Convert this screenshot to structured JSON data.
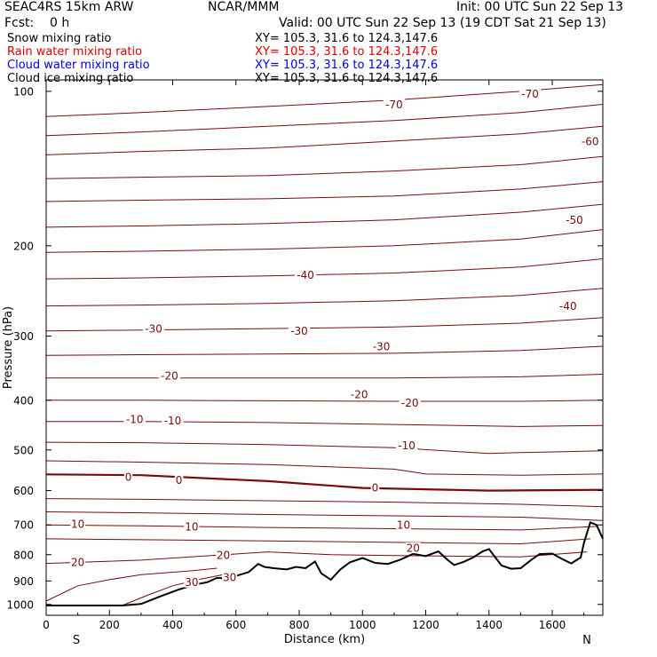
{
  "header": {
    "line1_left": "SEAC4RS 15km ARW",
    "line1_mid": "NCAR/MMM",
    "line1_right": "Init: 00 UTC Sun 22 Sep 13",
    "line2_left": "Fcst:    0 h",
    "line2_right": "Valid: 00 UTC Sun 22 Sep 13 (19 CDT Sat 21 Sep 13)"
  },
  "legend": [
    {
      "label": "Snow mixing ratio",
      "xy": "XY= 105.3, 31.6 to 124.3,147.6",
      "color": "#000000"
    },
    {
      "label": "Rain water mixing ratio",
      "xy": "XY= 105.3, 31.6 to 124.3,147.6",
      "color": "#e00000"
    },
    {
      "label": "Cloud water mixing ratio",
      "xy": "XY= 105.3, 31.6 to 124.3,147.6",
      "color": "#0000e0"
    },
    {
      "label": "Cloud ice mixing ratio",
      "xy": "XY= 105.3, 31.6 to 124.3,147.6",
      "color": "#000000"
    }
  ],
  "colors": {
    "contour": "#7a0a0a",
    "terrain": "#000000"
  },
  "chart_data": {
    "type": "line",
    "subtype": "vertical cross-section contour plot",
    "xlabel": "Distance (km)",
    "ylabel": "Pressure (hPa)",
    "xlim": [
      0,
      1760
    ],
    "ylim": [
      1050,
      95
    ],
    "yscale": "log",
    "x_ticks": [
      0,
      200,
      400,
      600,
      800,
      1000,
      1200,
      1400,
      1600
    ],
    "y_ticks": [
      1000,
      900,
      800,
      700,
      600,
      500,
      400,
      300,
      200,
      100
    ],
    "x_end_labels": {
      "left": "S",
      "right": "N"
    },
    "contour_field": "temperature (C)",
    "contour_interval": 5,
    "contours": [
      {
        "x": [
          0,
          300,
          700,
          1100,
          1500,
          1760
        ],
        "p": [
          112,
          110,
          107,
          104,
          100,
          97
        ]
      },
      {
        "x": [
          0,
          300,
          700,
          1100,
          1500,
          1760
        ],
        "p": [
          122,
          120,
          117,
          114,
          110,
          106
        ]
      },
      {
        "x": [
          0,
          300,
          700,
          1100,
          1500,
          1760
        ],
        "p": [
          133,
          131,
          129,
          125,
          121,
          117
        ]
      },
      {
        "x": [
          0,
          300,
          700,
          1100,
          1500,
          1760
        ],
        "p": [
          148,
          147,
          146,
          143,
          139,
          134
        ]
      },
      {
        "x": [
          0,
          300,
          700,
          1100,
          1500,
          1760
        ],
        "p": [
          164,
          163,
          162,
          160,
          155,
          150
        ]
      },
      {
        "x": [
          0,
          300,
          700,
          1100,
          1500,
          1760
        ],
        "p": [
          184,
          183,
          181,
          178,
          172,
          166
        ]
      },
      {
        "x": [
          0,
          300,
          700,
          1100,
          1500,
          1760
        ],
        "p": [
          206,
          205,
          203,
          200,
          194,
          186
        ]
      },
      {
        "x": [
          0,
          300,
          700,
          1100,
          1500,
          1760
        ],
        "p": [
          232,
          231,
          229,
          226,
          220,
          212
        ]
      },
      {
        "x": [
          0,
          300,
          700,
          1100,
          1500,
          1760
        ],
        "p": [
          262,
          261,
          259,
          256,
          250,
          242
        ]
      },
      {
        "x": [
          0,
          300,
          700,
          1100,
          1500,
          1760
        ],
        "p": [
          293,
          292,
          290,
          288,
          283,
          276
        ]
      },
      {
        "x": [
          0,
          300,
          700,
          1100,
          1500,
          1760
        ],
        "p": [
          327,
          326,
          325,
          324,
          320,
          314
        ]
      },
      {
        "x": [
          0,
          300,
          700,
          1100,
          1500,
          1760
        ],
        "p": [
          362,
          362,
          362,
          362,
          360,
          356
        ]
      },
      {
        "x": [
          0,
          300,
          700,
          1100,
          1500,
          1760
        ],
        "p": [
          400,
          400,
          401,
          402,
          402,
          400
        ]
      },
      {
        "x": [
          0,
          300,
          700,
          1100,
          1500,
          1760
        ],
        "p": [
          440,
          440,
          442,
          446,
          450,
          448
        ]
      },
      {
        "x": [
          0,
          300,
          700,
          1100,
          1400,
          1500,
          1760
        ],
        "p": [
          483,
          484,
          488,
          495,
          508,
          506,
          502
        ]
      },
      {
        "x": [
          0,
          300,
          700,
          1100,
          1200,
          1500,
          1760
        ],
        "p": [
          525,
          528,
          534,
          545,
          557,
          560,
          557
        ]
      },
      {
        "x": [
          0,
          300,
          700,
          1000,
          1400,
          1760
        ],
        "p": [
          558,
          560,
          575,
          593,
          600,
          598
        ],
        "bold": true
      },
      {
        "x": [
          0,
          300,
          700,
          1100,
          1500,
          1760
        ],
        "p": [
          622,
          624,
          628,
          632,
          638,
          645
        ]
      },
      {
        "x": [
          0,
          300,
          700,
          1100,
          1500,
          1760
        ],
        "p": [
          660,
          663,
          668,
          672,
          676,
          686
        ]
      },
      {
        "x": [
          0,
          300,
          700,
          1100,
          1500,
          1740
        ],
        "p": [
          700,
          703,
          708,
          712,
          716,
          705
        ]
      },
      {
        "x": [
          0,
          300,
          700,
          1100,
          1500,
          1720
        ],
        "p": [
          745,
          748,
          752,
          757,
          762,
          745
        ]
      },
      {
        "x": [
          0,
          300,
          700,
          900,
          1100,
          1500,
          1710
        ],
        "p": [
          832,
          820,
          790,
          800,
          803,
          808,
          790
        ]
      },
      {
        "x": [
          0,
          100,
          200,
          300,
          460,
          540
        ],
        "p": [
          985,
          920,
          895,
          875,
          860,
          850
        ]
      },
      {
        "x": [
          240,
          320,
          400,
          480,
          560
        ],
        "p": [
          1005,
          960,
          920,
          895,
          875
        ]
      }
    ],
    "contour_labels": [
      {
        "text": "-70",
        "x": 1100,
        "p": 106
      },
      {
        "text": "-70",
        "x": 1530,
        "p": 101
      },
      {
        "text": "-60",
        "x": 1720,
        "p": 125
      },
      {
        "text": "-50",
        "x": 1670,
        "p": 178
      },
      {
        "text": "-40",
        "x": 820,
        "p": 228
      },
      {
        "text": "-40",
        "x": 1650,
        "p": 262
      },
      {
        "text": "-30",
        "x": 340,
        "p": 290
      },
      {
        "text": "-30",
        "x": 800,
        "p": 293
      },
      {
        "text": "-30",
        "x": 1060,
        "p": 314
      },
      {
        "text": "-20",
        "x": 390,
        "p": 358
      },
      {
        "text": "-20",
        "x": 990,
        "p": 389
      },
      {
        "text": "-20",
        "x": 1150,
        "p": 404
      },
      {
        "text": "-10",
        "x": 280,
        "p": 435
      },
      {
        "text": "-10",
        "x": 400,
        "p": 438
      },
      {
        "text": "-10",
        "x": 1140,
        "p": 490
      },
      {
        "text": "0",
        "x": 260,
        "p": 564
      },
      {
        "text": "0",
        "x": 420,
        "p": 572
      },
      {
        "text": "0",
        "x": 1040,
        "p": 592
      },
      {
        "text": "10",
        "x": 100,
        "p": 697
      },
      {
        "text": "10",
        "x": 460,
        "p": 705
      },
      {
        "text": "10",
        "x": 1130,
        "p": 700
      },
      {
        "text": "20",
        "x": 100,
        "p": 826
      },
      {
        "text": "20",
        "x": 560,
        "p": 800
      },
      {
        "text": "20",
        "x": 1160,
        "p": 776
      },
      {
        "text": "30",
        "x": 460,
        "p": 905
      },
      {
        "text": "30",
        "x": 580,
        "p": 885
      }
    ],
    "terrain": {
      "x": [
        0,
        240,
        300,
        360,
        420,
        470,
        510,
        540,
        570,
        600,
        640,
        670,
        690,
        720,
        760,
        790,
        820,
        850,
        870,
        900,
        930,
        960,
        1000,
        1040,
        1080,
        1120,
        1160,
        1200,
        1240,
        1270,
        1290,
        1320,
        1350,
        1380,
        1400,
        1420,
        1440,
        1470,
        1500,
        1530,
        1560,
        1600,
        1630,
        1660,
        1690,
        1700,
        1720,
        1740,
        1760
      ],
      "p": [
        1005,
        1005,
        998,
        965,
        935,
        915,
        905,
        888,
        890,
        880,
        865,
        834,
        845,
        850,
        855,
        845,
        850,
        825,
        870,
        895,
        855,
        828,
        812,
        830,
        834,
        818,
        797,
        805,
        788,
        820,
        838,
        826,
        810,
        788,
        780,
        810,
        840,
        852,
        850,
        822,
        798,
        796,
        815,
        832,
        810,
        760,
        692,
        700,
        745
      ]
    }
  }
}
